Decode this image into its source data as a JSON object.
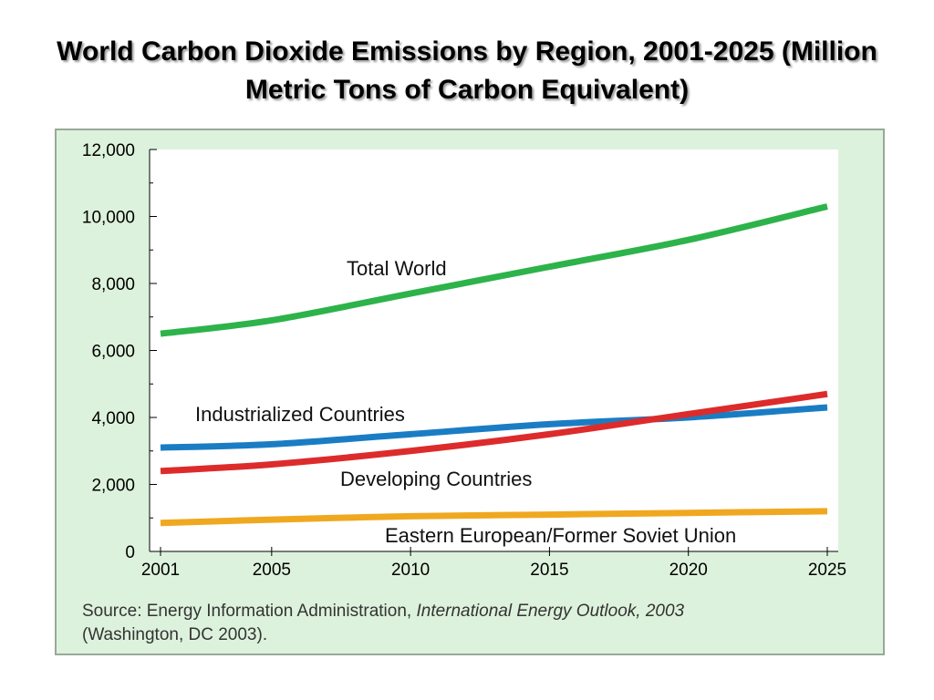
{
  "title": "World Carbon Dioxide Emissions by Region, 2001-2025 (Million Metric Tons of Carbon Equivalent)",
  "source": {
    "prefix": "Source: Energy Information Administration, ",
    "publication": "International Energy Outlook, 2003",
    "suffix": "(Washington, DC 2003)."
  },
  "chart_data": {
    "type": "line",
    "x": [
      2001,
      2005,
      2010,
      2015,
      2020,
      2025
    ],
    "xlim": [
      2001,
      2025
    ],
    "ylim": [
      0,
      12000
    ],
    "yticks": [
      "0",
      "2,000",
      "4,000",
      "6,000",
      "8,000",
      "10,000",
      "12,000"
    ],
    "xticks": [
      "2001",
      "2005",
      "2010",
      "2015",
      "2020",
      "2025"
    ],
    "grid": false,
    "series": [
      {
        "name": "Total World",
        "color": "#2db34a",
        "values": [
          6500,
          6900,
          7700,
          8500,
          9300,
          10300
        ]
      },
      {
        "name": "Industrialized Countries",
        "color": "#1a7dc4",
        "values": [
          3100,
          3200,
          3500,
          3800,
          4000,
          4300
        ]
      },
      {
        "name": "Developing Countries",
        "color": "#dd2b2b",
        "values": [
          2400,
          2600,
          3000,
          3500,
          4100,
          4700
        ]
      },
      {
        "name": "Eastern European/Former Soviet Union",
        "color": "#f0a820",
        "values": [
          850,
          950,
          1050,
          1100,
          1150,
          1200
        ]
      }
    ]
  }
}
